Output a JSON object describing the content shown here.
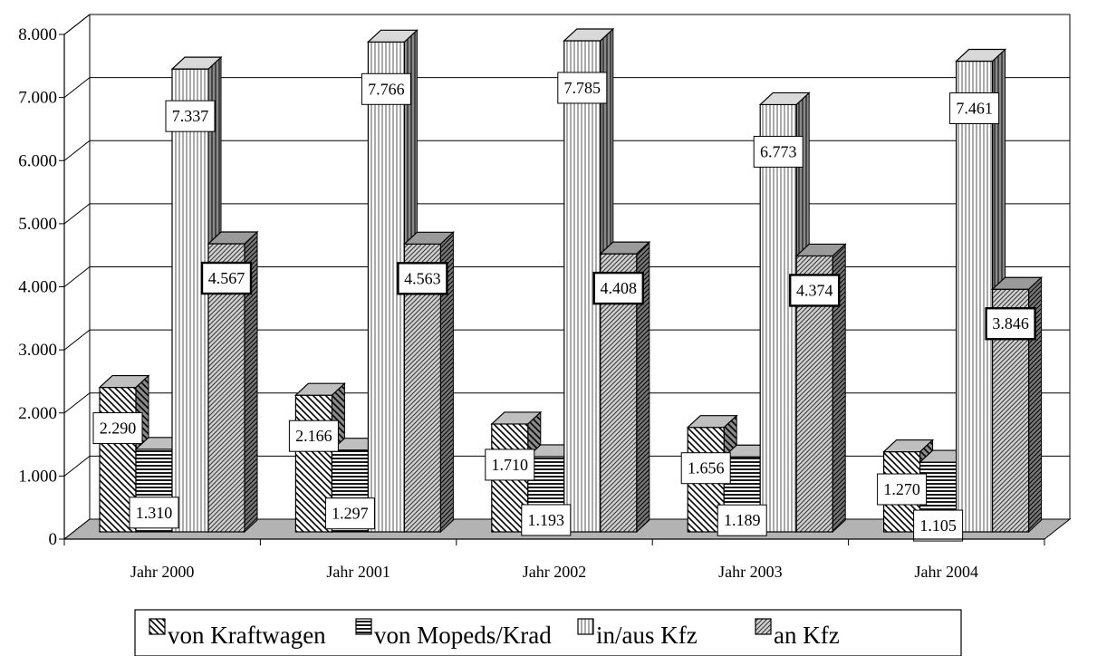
{
  "chart_data": {
    "type": "bar",
    "title": "",
    "xlabel": "",
    "ylabel": "",
    "categories": [
      "Jahr 2000",
      "Jahr 2001",
      "Jahr 2002",
      "Jahr 2003",
      "Jahr 2004"
    ],
    "series": [
      {
        "name": "von Kraftwagen",
        "values": [
          2290,
          2166,
          1710,
          1656,
          1270
        ],
        "labels": [
          "2.290",
          "2.166",
          "1.710",
          "1.656",
          "1.270"
        ]
      },
      {
        "name": "von Mopeds/Krad",
        "values": [
          1310,
          1297,
          1193,
          1189,
          1105
        ],
        "labels": [
          "1.310",
          "1.297",
          "1.193",
          "1.189",
          "1.105"
        ]
      },
      {
        "name": "in/aus Kfz",
        "values": [
          7337,
          7766,
          7785,
          6773,
          7461
        ],
        "labels": [
          "7.337",
          "7.766",
          "7.785",
          "6.773",
          "7.461"
        ]
      },
      {
        "name": "an Kfz",
        "values": [
          4567,
          4563,
          4408,
          4374,
          3846
        ],
        "labels": [
          "4.567",
          "4.563",
          "4.408",
          "4.374",
          "3.846"
        ]
      }
    ],
    "ylim": [
      0,
      8000
    ],
    "yticks": [
      0,
      1000,
      2000,
      3000,
      4000,
      5000,
      6000,
      7000,
      8000
    ],
    "ytick_labels": [
      "0",
      "1.000",
      "2.000",
      "3.000",
      "4.000",
      "5.000",
      "6.000",
      "7.000",
      "8.000"
    ],
    "grid": true,
    "legend_position": "bottom",
    "style": "3d-clustered-bar",
    "patterns": [
      "diagonal-down",
      "horizontal",
      "vertical",
      "diagonal-up"
    ]
  }
}
